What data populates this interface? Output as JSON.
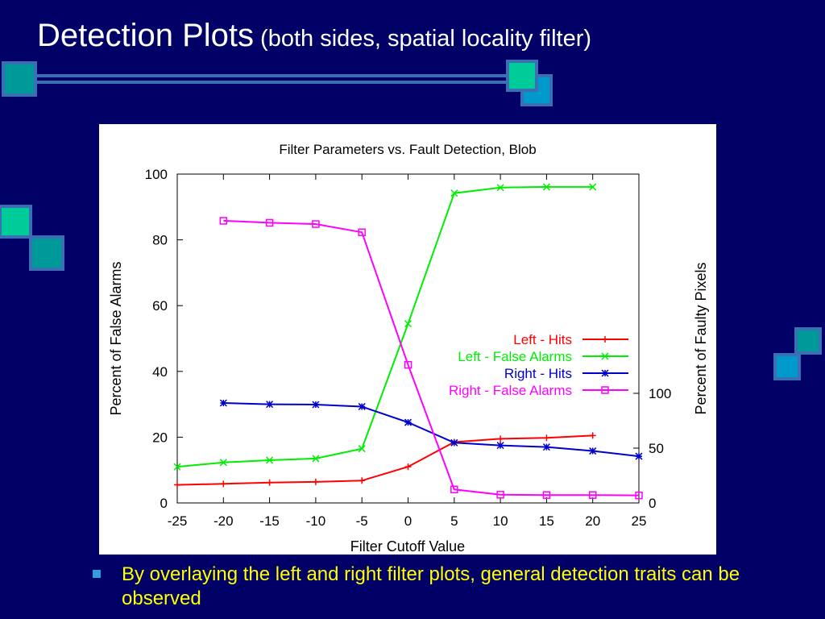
{
  "slide": {
    "title": "Detection Plots",
    "subtitle": "(both sides, spatial locality filter)",
    "bullet": "By overlaying the left and right filter plots, general detection traits can be observed"
  },
  "colors": {
    "background": "#000066",
    "deco_teal": "#009999",
    "deco_green": "#00cc99",
    "deco_blue": "#0099cc",
    "bar": "#3a6fb3",
    "bullet_text": "#ffff00"
  },
  "chart_data": {
    "type": "line",
    "title": "Filter Parameters vs. Fault Detection, Blob",
    "xlabel": "Filter Cutoff Value",
    "ylabel": "Percent of False Alarms",
    "y2label": "Percent of Faulty Pixels",
    "xlim": [
      -25,
      25
    ],
    "ylim": [
      0,
      100
    ],
    "y2lim": [
      0,
      300
    ],
    "xticks": [
      "-25",
      "-20",
      "-15",
      "-10",
      "-5",
      "0",
      "5",
      "10",
      "15",
      "20",
      "25"
    ],
    "yticks": [
      "0",
      "20",
      "40",
      "60",
      "80",
      "100"
    ],
    "y2ticks": [
      "0",
      "50",
      "100"
    ],
    "legend_position": "right-middle",
    "grid": false,
    "series": [
      {
        "name": "Left - Hits",
        "color": "#ff0000",
        "marker": "plus",
        "x": [
          -25,
          -20,
          -15,
          -10,
          -5,
          0,
          5,
          10,
          15,
          20
        ],
        "y": [
          5.5,
          5.8,
          6.2,
          6.4,
          6.8,
          11,
          18.5,
          19.5,
          19.8,
          20.5
        ]
      },
      {
        "name": "Left - False Alarms",
        "color": "#00ee00",
        "marker": "cross",
        "x": [
          -25,
          -20,
          -15,
          -10,
          -5,
          0,
          5,
          10,
          15,
          20
        ],
        "y": [
          11,
          12.3,
          13,
          13.5,
          16.5,
          54.5,
          94.2,
          95.9,
          96.1,
          96.1
        ]
      },
      {
        "name": "Right - Hits",
        "color": "#0000cc",
        "marker": "star",
        "x": [
          -20,
          -15,
          -10,
          -5,
          0,
          5,
          10,
          15,
          20,
          25
        ],
        "y": [
          30.4,
          30,
          29.9,
          29.3,
          24.5,
          18.3,
          17.5,
          17,
          15.8,
          14.2
        ]
      },
      {
        "name": "Right - False Alarms",
        "color": "#ff00ff",
        "marker": "square",
        "x": [
          -20,
          -15,
          -10,
          -5,
          0,
          5,
          10,
          15,
          20,
          25
        ],
        "y": [
          85.8,
          85.2,
          84.8,
          82.3,
          42,
          4.1,
          2.5,
          2.4,
          2.4,
          2.3
        ]
      }
    ]
  }
}
